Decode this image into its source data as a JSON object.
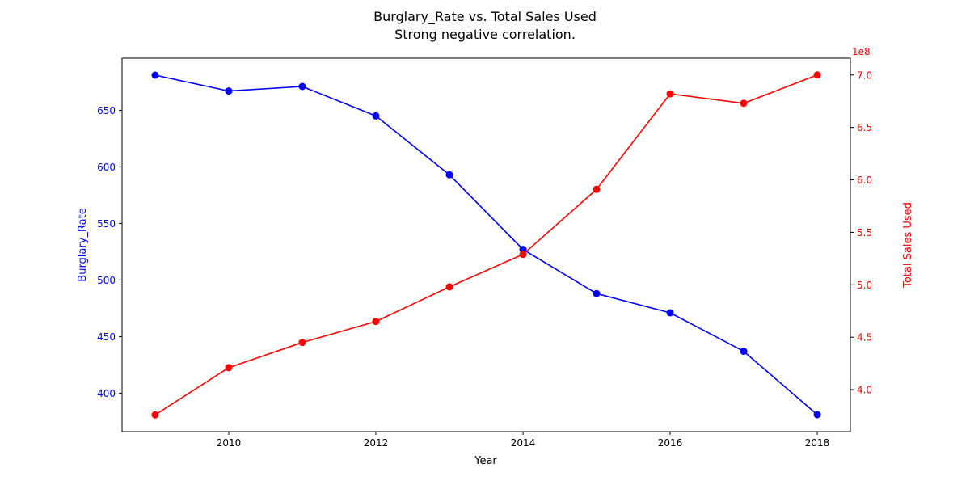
{
  "chart_data": {
    "type": "line",
    "title": "Burglary_Rate vs. Total Sales Used",
    "subtitle": "Strong negative correlation.",
    "xlabel": "Year",
    "x": [
      2009,
      2010,
      2011,
      2012,
      2013,
      2014,
      2015,
      2016,
      2017,
      2018
    ],
    "x_ticks": [
      2010,
      2012,
      2014,
      2016,
      2018
    ],
    "x_tick_labels": [
      "2010",
      "2012",
      "2014",
      "2016",
      "2018"
    ],
    "xlim": [
      2008.55,
      2018.45
    ],
    "grid": false,
    "legend": "none",
    "series": [
      {
        "name": "Burglary_Rate",
        "axis": "left",
        "color": "#0000ff",
        "marker": "circle",
        "values": [
          681,
          667,
          671,
          645,
          593,
          527,
          488,
          471,
          437,
          381
        ]
      },
      {
        "name": "Total Sales Used",
        "axis": "right",
        "color": "#ff0000",
        "marker": "circle",
        "values": [
          376000000,
          421000000,
          445000000,
          465000000,
          498000000,
          529000000,
          591000000,
          682000000,
          673000000,
          700000000
        ]
      }
    ],
    "y_left": {
      "label": "Burglary_Rate",
      "color": "#0000ff",
      "lim": [
        366,
        696
      ],
      "ticks": [
        400,
        450,
        500,
        550,
        600,
        650
      ],
      "tick_labels": [
        "400",
        "450",
        "500",
        "550",
        "600",
        "650"
      ]
    },
    "y_right": {
      "label": "Total Sales Used",
      "color": "#ff0000",
      "lim": [
        360000000,
        716000000
      ],
      "ticks": [
        400000000,
        450000000,
        500000000,
        550000000,
        600000000,
        650000000,
        700000000
      ],
      "tick_labels": [
        "4.0",
        "4.5",
        "5.0",
        "5.5",
        "6.0",
        "6.5",
        "7.0"
      ],
      "offset_text": "1e8"
    }
  }
}
